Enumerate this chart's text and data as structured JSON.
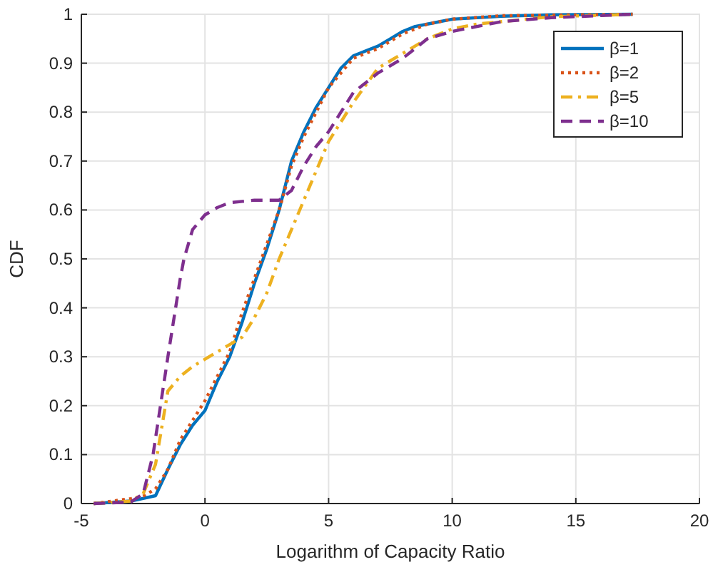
{
  "chart_data": {
    "type": "line",
    "xlabel": "Logarithm of Capacity Ratio",
    "ylabel": "CDF",
    "xlim": [
      -5,
      20
    ],
    "xticks": [
      -5,
      0,
      5,
      10,
      15,
      20
    ],
    "ylim": [
      0,
      1
    ],
    "yticks": [
      0,
      0.1,
      0.2,
      0.3,
      0.4,
      0.5,
      0.6,
      0.7,
      0.8,
      0.9,
      1
    ],
    "grid": true,
    "legend": "top right",
    "marker": "none",
    "series": [
      {
        "name": "β=1",
        "color": "#0072bd",
        "line_style": "solid",
        "x": [
          -4.5,
          -3,
          -2,
          -1.5,
          -1,
          -0.5,
          0,
          0.5,
          1,
          1.5,
          2,
          2.5,
          3,
          3.5,
          4,
          4.5,
          5,
          5.5,
          6,
          7,
          7.5,
          8,
          8.5,
          9,
          10,
          12,
          14,
          17.3
        ],
        "values": [
          0,
          0.005,
          0.016,
          0.07,
          0.12,
          0.16,
          0.19,
          0.25,
          0.3,
          0.37,
          0.45,
          0.52,
          0.6,
          0.7,
          0.76,
          0.81,
          0.85,
          0.89,
          0.915,
          0.935,
          0.95,
          0.965,
          0.975,
          0.98,
          0.99,
          0.996,
          0.999,
          1
        ]
      },
      {
        "name": "β=2",
        "color": "#d95319",
        "line_style": "dotted",
        "x": [
          -4.5,
          -3,
          -2.5,
          -2,
          -1.5,
          -1,
          -0.5,
          0,
          0.5,
          1,
          1.5,
          2,
          2.5,
          3,
          3.5,
          4,
          4.5,
          5,
          5.5,
          6,
          7,
          8,
          9,
          10,
          12,
          17.3
        ],
        "values": [
          0,
          0.01,
          0.015,
          0.03,
          0.07,
          0.13,
          0.17,
          0.21,
          0.26,
          0.31,
          0.39,
          0.46,
          0.53,
          0.6,
          0.69,
          0.75,
          0.8,
          0.85,
          0.88,
          0.91,
          0.93,
          0.96,
          0.98,
          0.99,
          0.997,
          1
        ]
      },
      {
        "name": "β=5",
        "color": "#edb120",
        "line_style": "dashdot",
        "x": [
          -4.5,
          -3,
          -2.5,
          -2,
          -1.7,
          -1.5,
          -1,
          -0.5,
          0,
          0.5,
          1,
          1.5,
          2,
          2.5,
          3,
          3.5,
          4,
          4.5,
          5,
          5.5,
          6,
          7,
          8,
          9,
          10,
          11,
          12,
          14,
          17.3
        ],
        "values": [
          0,
          0.005,
          0.02,
          0.08,
          0.17,
          0.23,
          0.26,
          0.28,
          0.295,
          0.31,
          0.325,
          0.34,
          0.38,
          0.43,
          0.5,
          0.56,
          0.62,
          0.68,
          0.74,
          0.78,
          0.82,
          0.89,
          0.92,
          0.95,
          0.97,
          0.98,
          0.985,
          0.995,
          1
        ]
      },
      {
        "name": "β=10",
        "color": "#7e2f8e",
        "line_style": "dashed",
        "x": [
          -4.5,
          -3,
          -2.5,
          -2.1,
          -1.5,
          -1,
          -0.85,
          -0.5,
          0,
          0.5,
          1,
          2,
          3,
          3.5,
          4,
          4.5,
          5,
          5.5,
          6,
          7,
          8,
          9,
          10,
          12,
          14,
          17.3
        ],
        "values": [
          0,
          0.003,
          0.02,
          0.1,
          0.3,
          0.46,
          0.5,
          0.56,
          0.59,
          0.605,
          0.615,
          0.62,
          0.62,
          0.64,
          0.69,
          0.73,
          0.76,
          0.8,
          0.84,
          0.88,
          0.91,
          0.95,
          0.965,
          0.985,
          0.993,
          1
        ]
      }
    ]
  }
}
